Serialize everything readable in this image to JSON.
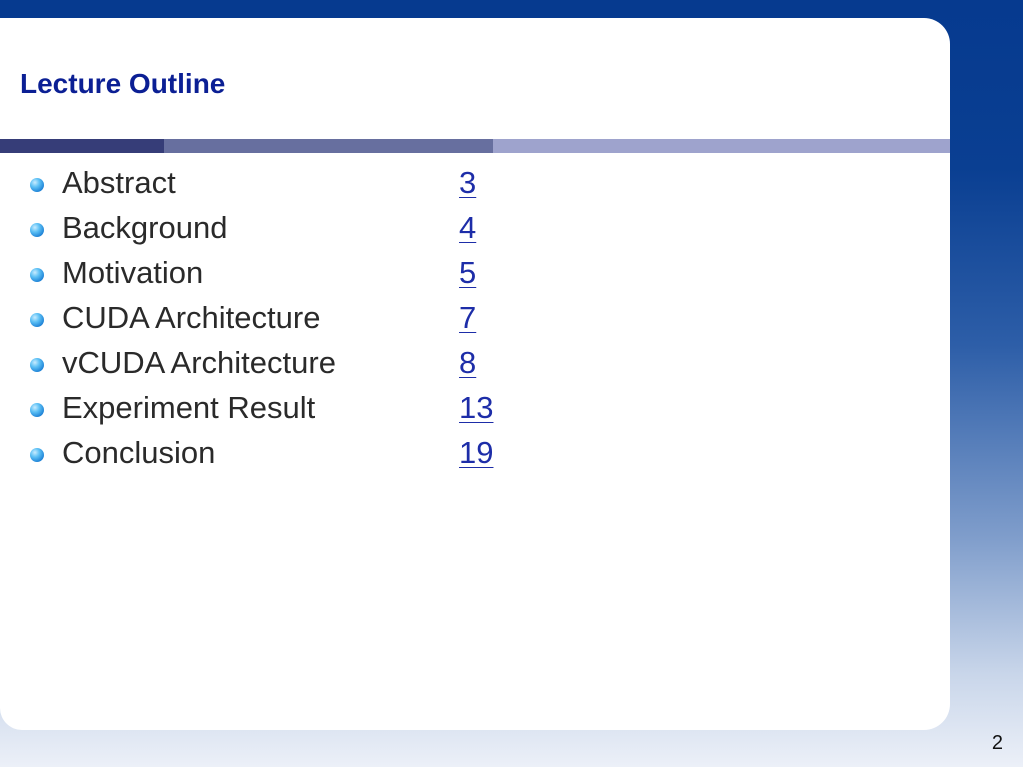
{
  "slide": {
    "title": "Lecture Outline",
    "number": "2"
  },
  "outline": [
    {
      "label": "Abstract",
      "page": "3"
    },
    {
      "label": "Background",
      "page": "4"
    },
    {
      "label": "Motivation",
      "page": "5"
    },
    {
      "label": "CUDA Architecture",
      "page": "7"
    },
    {
      "label": "vCUDA Architecture",
      "page": "8"
    },
    {
      "label": "Experiment Result",
      "page": "13"
    },
    {
      "label": "Conclusion",
      "page": "19"
    }
  ],
  "colors": {
    "title": "#0b1f94",
    "link": "#1d2da8",
    "background_top": "#063a8f",
    "background_bottom": "#ecf0f8",
    "bar_dark": "#363d78",
    "bar_mid": "#676f9f",
    "bar_light": "#9ea3cd"
  },
  "icons": {
    "bullet": "blue-sphere-bullet-icon"
  }
}
